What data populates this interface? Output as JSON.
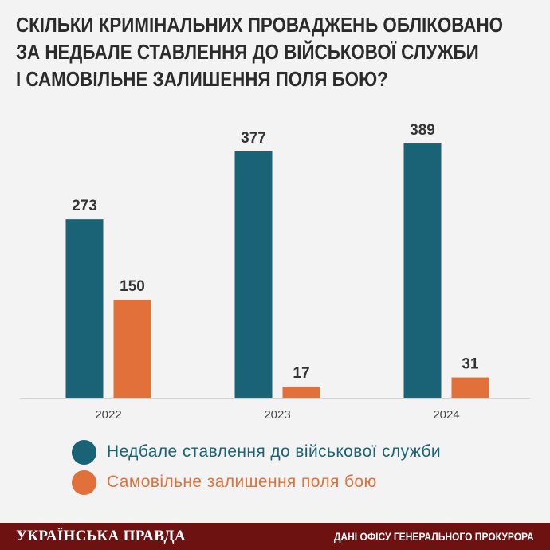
{
  "title_lines": [
    "СКІЛЬКИ КРИМІНАЛЬНИХ ПРОВАДЖЕНЬ ОБЛІКОВАНО",
    "ЗА НЕДБАЛЕ СТАВЛЕННЯ ДО ВІЙСЬКОВОЇ СЛУЖБИ",
    "І САМОВІЛЬНЕ ЗАЛИШЕННЯ ПОЛЯ БОЮ?"
  ],
  "chart_data": {
    "type": "bar",
    "title": "СКІЛЬКИ КРИМІНАЛЬНИХ ПРОВАДЖЕНЬ ОБЛІКОВАНО ЗА НЕДБАЛЕ СТАВЛЕННЯ ДО ВІЙСЬКОВОЇ СЛУЖБИ І САМОВІЛЬНЕ ЗАЛИШЕННЯ ПОЛЯ БОЮ?",
    "categories": [
      "2022",
      "2023",
      "2024"
    ],
    "series": [
      {
        "name": "Недбале ставлення до військової служби",
        "values": [
          273,
          377,
          389
        ],
        "color": "#1a6276"
      },
      {
        "name": "Самовільне залишення поля бою",
        "values": [
          150,
          17,
          31
        ],
        "color": "#e1703a"
      }
    ],
    "ylim": [
      0,
      400
    ],
    "grid": false,
    "legend_position": "bottom"
  },
  "footer": {
    "logo": "УКРАЇНСЬКА ПРАВДА",
    "source": "ДАНІ ОФІСУ ГЕНЕРАЛЬНОГО ПРОКУРОРА"
  }
}
